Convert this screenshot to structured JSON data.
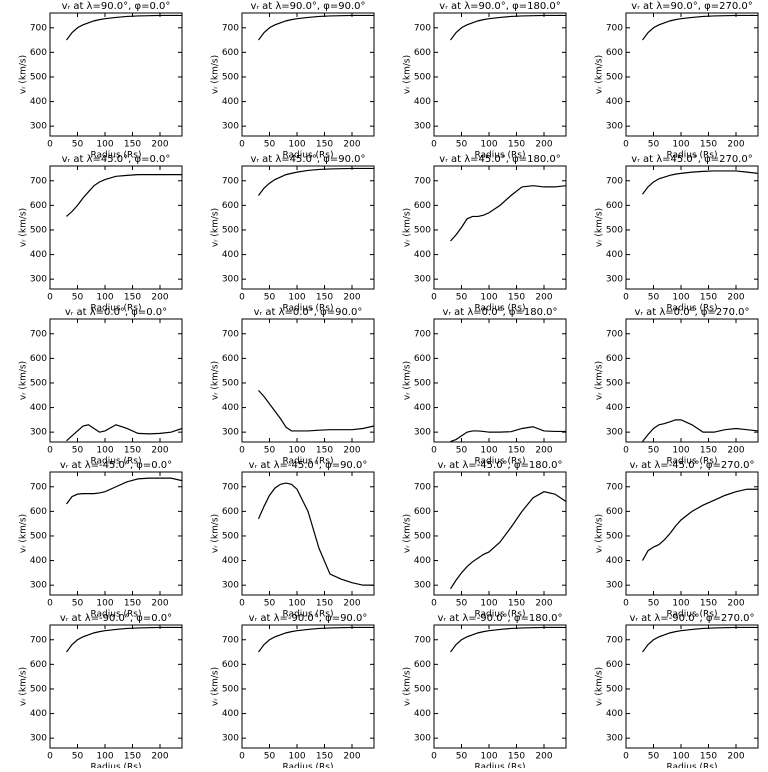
{
  "chart_data": [
    {
      "type": "line",
      "title": "vᵣ at λ=90.0°, φ=0.0°",
      "xlabel": "Radius (Rs)",
      "ylabel": "vᵣ (km/s)",
      "color": "#000000",
      "xlim": [
        0,
        240
      ],
      "ylim": [
        260,
        760
      ],
      "xticks": [
        0,
        50,
        100,
        150,
        200
      ],
      "yticks": [
        300,
        400,
        500,
        600,
        700
      ],
      "x": [
        30,
        40,
        50,
        60,
        70,
        80,
        90,
        100,
        120,
        140,
        160,
        180,
        200,
        220,
        240
      ],
      "values": [
        650,
        680,
        700,
        712,
        720,
        728,
        733,
        737,
        742,
        746,
        748,
        749,
        750,
        750,
        750
      ]
    },
    {
      "type": "line",
      "title": "vᵣ at λ=90.0°, φ=90.0°",
      "xlabel": "Radius (Rs)",
      "ylabel": "vᵣ (km/s)",
      "color": "#000000",
      "xlim": [
        0,
        240
      ],
      "ylim": [
        260,
        760
      ],
      "xticks": [
        0,
        50,
        100,
        150,
        200
      ],
      "yticks": [
        300,
        400,
        500,
        600,
        700
      ],
      "x": [
        30,
        40,
        50,
        60,
        70,
        80,
        90,
        100,
        120,
        140,
        160,
        180,
        200,
        220,
        240
      ],
      "values": [
        650,
        680,
        700,
        712,
        720,
        728,
        733,
        737,
        742,
        746,
        748,
        749,
        750,
        750,
        750
      ]
    },
    {
      "type": "line",
      "title": "vᵣ at λ=90.0°, φ=180.0°",
      "xlabel": "Radius (Rs)",
      "ylabel": "vᵣ (km/s)",
      "color": "#000000",
      "xlim": [
        0,
        240
      ],
      "ylim": [
        260,
        760
      ],
      "xticks": [
        0,
        50,
        100,
        150,
        200
      ],
      "yticks": [
        300,
        400,
        500,
        600,
        700
      ],
      "x": [
        30,
        40,
        50,
        60,
        70,
        80,
        90,
        100,
        120,
        140,
        160,
        180,
        200,
        220,
        240
      ],
      "values": [
        650,
        680,
        700,
        712,
        720,
        728,
        733,
        737,
        742,
        746,
        748,
        749,
        750,
        750,
        750
      ]
    },
    {
      "type": "line",
      "title": "vᵣ at λ=90.0°, φ=270.0°",
      "xlabel": "Radius (Rs)",
      "ylabel": "vᵣ (km/s)",
      "color": "#000000",
      "xlim": [
        0,
        240
      ],
      "ylim": [
        260,
        760
      ],
      "xticks": [
        0,
        50,
        100,
        150,
        200
      ],
      "yticks": [
        300,
        400,
        500,
        600,
        700
      ],
      "x": [
        30,
        40,
        50,
        60,
        70,
        80,
        90,
        100,
        120,
        140,
        160,
        180,
        200,
        220,
        240
      ],
      "values": [
        650,
        680,
        700,
        712,
        720,
        728,
        733,
        737,
        742,
        746,
        748,
        749,
        750,
        750,
        750
      ]
    },
    {
      "type": "line",
      "title": "vᵣ at λ=45.0°, φ=0.0°",
      "xlabel": "Radius (Rs)",
      "ylabel": "vᵣ (km/s)",
      "color": "#000000",
      "xlim": [
        0,
        240
      ],
      "ylim": [
        260,
        760
      ],
      "xticks": [
        0,
        50,
        100,
        150,
        200
      ],
      "yticks": [
        300,
        400,
        500,
        600,
        700
      ],
      "x": [
        30,
        40,
        50,
        60,
        70,
        80,
        90,
        100,
        120,
        140,
        160,
        180,
        200,
        220,
        240
      ],
      "values": [
        555,
        575,
        600,
        630,
        655,
        680,
        695,
        705,
        718,
        722,
        725,
        725,
        725,
        725,
        725
      ]
    },
    {
      "type": "line",
      "title": "vᵣ at λ=45.0°, φ=90.0°",
      "xlabel": "Radius (Rs)",
      "ylabel": "vᵣ (km/s)",
      "color": "#000000",
      "xlim": [
        0,
        240
      ],
      "ylim": [
        260,
        760
      ],
      "xticks": [
        0,
        50,
        100,
        150,
        200
      ],
      "yticks": [
        300,
        400,
        500,
        600,
        700
      ],
      "x": [
        30,
        40,
        50,
        60,
        70,
        80,
        90,
        100,
        120,
        140,
        160,
        180,
        200,
        220,
        240
      ],
      "values": [
        640,
        670,
        690,
        705,
        715,
        725,
        730,
        735,
        742,
        746,
        748,
        749,
        750,
        750,
        750
      ]
    },
    {
      "type": "line",
      "title": "vᵣ at λ=45.0°, φ=180.0°",
      "xlabel": "Radius (Rs)",
      "ylabel": "vᵣ (km/s)",
      "color": "#000000",
      "xlim": [
        0,
        240
      ],
      "ylim": [
        260,
        760
      ],
      "xticks": [
        0,
        50,
        100,
        150,
        200
      ],
      "yticks": [
        300,
        400,
        500,
        600,
        700
      ],
      "x": [
        30,
        40,
        50,
        60,
        70,
        80,
        90,
        100,
        120,
        140,
        160,
        180,
        200,
        220,
        240
      ],
      "values": [
        455,
        480,
        510,
        545,
        555,
        555,
        560,
        570,
        600,
        640,
        675,
        680,
        675,
        675,
        680
      ]
    },
    {
      "type": "line",
      "title": "vᵣ at λ=45.0°, φ=270.0°",
      "xlabel": "Radius (Rs)",
      "ylabel": "vᵣ (km/s)",
      "color": "#000000",
      "xlim": [
        0,
        240
      ],
      "ylim": [
        260,
        760
      ],
      "xticks": [
        0,
        50,
        100,
        150,
        200
      ],
      "yticks": [
        300,
        400,
        500,
        600,
        700
      ],
      "x": [
        30,
        40,
        50,
        60,
        70,
        80,
        90,
        100,
        120,
        140,
        160,
        180,
        200,
        220,
        240
      ],
      "values": [
        645,
        675,
        695,
        708,
        715,
        722,
        727,
        730,
        735,
        738,
        740,
        740,
        740,
        735,
        730
      ]
    },
    {
      "type": "line",
      "title": "vᵣ at λ=0.0°, φ=0.0°",
      "xlabel": "Radius (Rs)",
      "ylabel": "vᵣ (km/s)",
      "color": "#000000",
      "xlim": [
        0,
        240
      ],
      "ylim": [
        260,
        760
      ],
      "xticks": [
        0,
        50,
        100,
        150,
        200
      ],
      "yticks": [
        300,
        400,
        500,
        600,
        700
      ],
      "x": [
        30,
        40,
        50,
        60,
        70,
        80,
        90,
        100,
        120,
        140,
        160,
        180,
        200,
        220,
        240
      ],
      "values": [
        265,
        285,
        305,
        325,
        330,
        315,
        300,
        305,
        330,
        315,
        295,
        293,
        295,
        300,
        315
      ]
    },
    {
      "type": "line",
      "title": "vᵣ at λ=0.0°, φ=90.0°",
      "xlabel": "Radius (Rs)",
      "ylabel": "vᵣ (km/s)",
      "color": "#000000",
      "xlim": [
        0,
        240
      ],
      "ylim": [
        260,
        760
      ],
      "xticks": [
        0,
        50,
        100,
        150,
        200
      ],
      "yticks": [
        300,
        400,
        500,
        600,
        700
      ],
      "x": [
        30,
        40,
        50,
        60,
        70,
        80,
        90,
        100,
        120,
        140,
        160,
        180,
        200,
        220,
        240
      ],
      "values": [
        470,
        445,
        415,
        385,
        355,
        320,
        305,
        305,
        305,
        308,
        310,
        310,
        310,
        315,
        325
      ]
    },
    {
      "type": "line",
      "title": "vᵣ at λ=0.0°, φ=180.0°",
      "xlabel": "Radius (Rs)",
      "ylabel": "vᵣ (km/s)",
      "color": "#000000",
      "xlim": [
        0,
        240
      ],
      "ylim": [
        260,
        760
      ],
      "xticks": [
        0,
        50,
        100,
        150,
        200
      ],
      "yticks": [
        300,
        400,
        500,
        600,
        700
      ],
      "x": [
        30,
        40,
        50,
        60,
        70,
        80,
        90,
        100,
        120,
        140,
        160,
        180,
        200,
        220,
        240
      ],
      "values": [
        262,
        270,
        285,
        300,
        305,
        305,
        303,
        300,
        300,
        302,
        315,
        322,
        305,
        303,
        303
      ]
    },
    {
      "type": "line",
      "title": "vᵣ at λ=0.0°, φ=270.0°",
      "xlabel": "Radius (Rs)",
      "ylabel": "vᵣ (km/s)",
      "color": "#000000",
      "xlim": [
        0,
        240
      ],
      "ylim": [
        260,
        760
      ],
      "xticks": [
        0,
        50,
        100,
        150,
        200
      ],
      "yticks": [
        300,
        400,
        500,
        600,
        700
      ],
      "x": [
        30,
        40,
        50,
        60,
        70,
        80,
        90,
        100,
        120,
        140,
        160,
        180,
        200,
        220,
        240
      ],
      "values": [
        262,
        290,
        315,
        330,
        335,
        342,
        350,
        350,
        330,
        300,
        300,
        310,
        315,
        310,
        305
      ]
    },
    {
      "type": "line",
      "title": "vᵣ at λ=-45.0°, φ=0.0°",
      "xlabel": "Radius (Rs)",
      "ylabel": "vᵣ (km/s)",
      "color": "#000000",
      "xlim": [
        0,
        240
      ],
      "ylim": [
        260,
        760
      ],
      "xticks": [
        0,
        50,
        100,
        150,
        200
      ],
      "yticks": [
        300,
        400,
        500,
        600,
        700
      ],
      "x": [
        30,
        40,
        50,
        60,
        70,
        80,
        90,
        100,
        120,
        140,
        160,
        180,
        200,
        220,
        240
      ],
      "values": [
        630,
        660,
        670,
        672,
        672,
        672,
        675,
        680,
        700,
        720,
        732,
        735,
        735,
        735,
        725
      ]
    },
    {
      "type": "line",
      "title": "vᵣ at λ=-45.0°, φ=90.0°",
      "xlabel": "Radius (Rs)",
      "ylabel": "vᵣ (km/s)",
      "color": "#000000",
      "xlim": [
        0,
        240
      ],
      "ylim": [
        260,
        760
      ],
      "xticks": [
        0,
        50,
        100,
        150,
        200
      ],
      "yticks": [
        300,
        400,
        500,
        600,
        700
      ],
      "x": [
        30,
        40,
        50,
        60,
        70,
        80,
        90,
        100,
        120,
        140,
        160,
        180,
        200,
        220,
        240
      ],
      "values": [
        570,
        620,
        665,
        695,
        710,
        715,
        710,
        690,
        600,
        450,
        345,
        325,
        310,
        300,
        300
      ]
    },
    {
      "type": "line",
      "title": "vᵣ at λ=-45.0°, φ=180.0°",
      "xlabel": "Radius (Rs)",
      "ylabel": "vᵣ (km/s)",
      "color": "#000000",
      "xlim": [
        0,
        240
      ],
      "ylim": [
        260,
        760
      ],
      "xticks": [
        0,
        50,
        100,
        150,
        200
      ],
      "yticks": [
        300,
        400,
        500,
        600,
        700
      ],
      "x": [
        30,
        40,
        50,
        60,
        70,
        80,
        90,
        100,
        120,
        140,
        160,
        180,
        200,
        220,
        240
      ],
      "values": [
        285,
        320,
        350,
        375,
        395,
        410,
        425,
        435,
        475,
        535,
        600,
        655,
        680,
        670,
        640
      ]
    },
    {
      "type": "line",
      "title": "vᵣ at λ=-45.0°, φ=270.0°",
      "xlabel": "Radius (Rs)",
      "ylabel": "vᵣ (km/s)",
      "color": "#000000",
      "xlim": [
        0,
        240
      ],
      "ylim": [
        260,
        760
      ],
      "xticks": [
        0,
        50,
        100,
        150,
        200
      ],
      "yticks": [
        300,
        400,
        500,
        600,
        700
      ],
      "x": [
        30,
        40,
        50,
        60,
        70,
        80,
        90,
        100,
        120,
        140,
        160,
        180,
        200,
        220,
        240
      ],
      "values": [
        400,
        440,
        455,
        465,
        485,
        510,
        540,
        565,
        600,
        625,
        645,
        665,
        680,
        690,
        690
      ]
    },
    {
      "type": "line",
      "title": "vᵣ at λ=-90.0°, φ=0.0°",
      "xlabel": "Radius (Rs)",
      "ylabel": "vᵣ (km/s)",
      "color": "#000000",
      "xlim": [
        0,
        240
      ],
      "ylim": [
        260,
        760
      ],
      "xticks": [
        0,
        50,
        100,
        150,
        200
      ],
      "yticks": [
        300,
        400,
        500,
        600,
        700
      ],
      "x": [
        30,
        40,
        50,
        60,
        70,
        80,
        90,
        100,
        120,
        140,
        160,
        180,
        200,
        220,
        240
      ],
      "values": [
        650,
        680,
        700,
        712,
        720,
        728,
        733,
        737,
        742,
        746,
        748,
        749,
        750,
        750,
        750
      ]
    },
    {
      "type": "line",
      "title": "vᵣ at λ=-90.0°, φ=90.0°",
      "xlabel": "Radius (Rs)",
      "ylabel": "vᵣ (km/s)",
      "color": "#000000",
      "xlim": [
        0,
        240
      ],
      "ylim": [
        260,
        760
      ],
      "xticks": [
        0,
        50,
        100,
        150,
        200
      ],
      "yticks": [
        300,
        400,
        500,
        600,
        700
      ],
      "x": [
        30,
        40,
        50,
        60,
        70,
        80,
        90,
        100,
        120,
        140,
        160,
        180,
        200,
        220,
        240
      ],
      "values": [
        650,
        680,
        700,
        712,
        720,
        728,
        733,
        737,
        742,
        746,
        748,
        749,
        750,
        750,
        750
      ]
    },
    {
      "type": "line",
      "title": "vᵣ at λ=-90.0°, φ=180.0°",
      "xlabel": "Radius (Rs)",
      "ylabel": "vᵣ (km/s)",
      "color": "#000000",
      "xlim": [
        0,
        240
      ],
      "ylim": [
        260,
        760
      ],
      "xticks": [
        0,
        50,
        100,
        150,
        200
      ],
      "yticks": [
        300,
        400,
        500,
        600,
        700
      ],
      "x": [
        30,
        40,
        50,
        60,
        70,
        80,
        90,
        100,
        120,
        140,
        160,
        180,
        200,
        220,
        240
      ],
      "values": [
        650,
        680,
        700,
        712,
        720,
        728,
        733,
        737,
        742,
        746,
        748,
        749,
        750,
        750,
        750
      ]
    },
    {
      "type": "line",
      "title": "vᵣ at λ=-90.0°, φ=270.0°",
      "xlabel": "Radius (Rs)",
      "ylabel": "vᵣ (km/s)",
      "color": "#000000",
      "xlim": [
        0,
        240
      ],
      "ylim": [
        260,
        760
      ],
      "xticks": [
        0,
        50,
        100,
        150,
        200
      ],
      "yticks": [
        300,
        400,
        500,
        600,
        700
      ],
      "x": [
        30,
        40,
        50,
        60,
        70,
        80,
        90,
        100,
        120,
        140,
        160,
        180,
        200,
        220,
        240
      ],
      "values": [
        650,
        680,
        700,
        712,
        720,
        728,
        733,
        737,
        742,
        746,
        748,
        749,
        750,
        750,
        750
      ]
    }
  ]
}
